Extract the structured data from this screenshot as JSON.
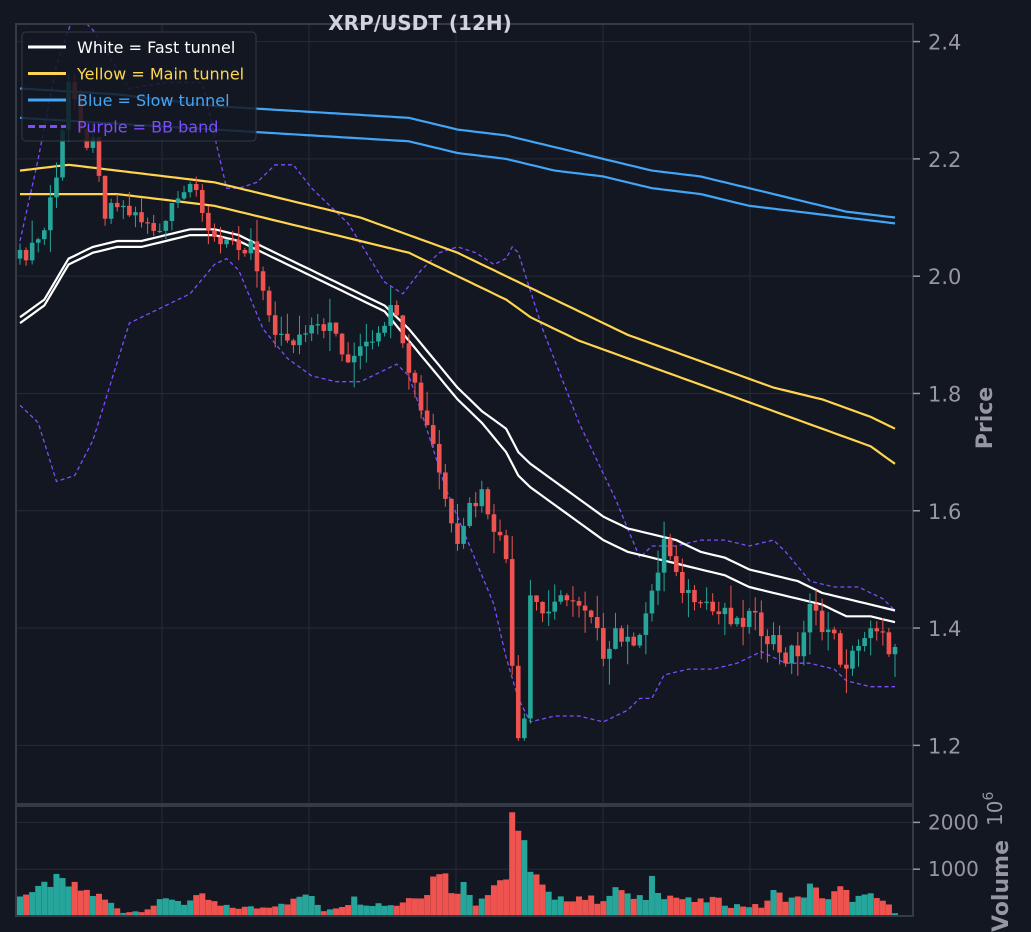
{
  "chart_data": {
    "type": "candlestick",
    "title": "XRP/USDT (12H)",
    "colors": {
      "background": "#131722",
      "grid": "#252b37",
      "frame": "#363a45",
      "up": "#26a69a",
      "down": "#ef5350",
      "fast": "#ffffff",
      "main": "#ffd54f",
      "slow": "#42a5f5",
      "bb": "#7c4dff",
      "tick": "#9598a1",
      "title": "#d1d4dc"
    },
    "price_axis": {
      "label": "Price",
      "ylim": [
        1.1,
        2.43
      ],
      "ticks": [
        1.2,
        1.4,
        1.6,
        1.8,
        2.0,
        2.2,
        2.4
      ],
      "tick_labels": [
        "1.2",
        "1.4",
        "1.6",
        "1.8",
        "2.0",
        "2.2",
        "2.4"
      ]
    },
    "volume_axis": {
      "label": "Volume",
      "multiplier": "10",
      "exponent": "6",
      "ylim": [
        0,
        2350
      ],
      "ticks": [
        1000,
        2000
      ],
      "tick_labels": [
        "1000",
        "2000"
      ]
    },
    "legend": {
      "placement": "top-left",
      "entries": [
        {
          "label": "White = Fast tunnel",
          "color": "#ffffff",
          "style": "solid"
        },
        {
          "label": "Yellow = Main tunnel",
          "color": "#ffd54f",
          "style": "solid"
        },
        {
          "label": "Blue = Slow tunnel",
          "color": "#42a5f5",
          "style": "solid"
        },
        {
          "label": "Purple = BB band",
          "color": "#7c4dff",
          "style": "dashed"
        }
      ]
    },
    "grid": true,
    "bar_count": 145,
    "anchors_close": [
      [
        0,
        2.03
      ],
      [
        4,
        2.08
      ],
      [
        6,
        2.18
      ],
      [
        8,
        2.33
      ],
      [
        10,
        2.24
      ],
      [
        12,
        2.22
      ],
      [
        14,
        2.1
      ],
      [
        16,
        2.12
      ],
      [
        18,
        2.11
      ],
      [
        20,
        2.09
      ],
      [
        22,
        2.08
      ],
      [
        24,
        2.1
      ],
      [
        26,
        2.15
      ],
      [
        28,
        2.16
      ],
      [
        30,
        2.1
      ],
      [
        32,
        2.07
      ],
      [
        34,
        2.06
      ],
      [
        36,
        2.03
      ],
      [
        38,
        2.05
      ],
      [
        40,
        1.96
      ],
      [
        42,
        1.91
      ],
      [
        44,
        1.88
      ],
      [
        46,
        1.9
      ],
      [
        48,
        1.93
      ],
      [
        50,
        1.92
      ],
      [
        52,
        1.9
      ],
      [
        54,
        1.84
      ],
      [
        56,
        1.89
      ],
      [
        58,
        1.9
      ],
      [
        60,
        1.93
      ],
      [
        62,
        1.95
      ],
      [
        64,
        1.85
      ],
      [
        66,
        1.78
      ],
      [
        68,
        1.72
      ],
      [
        70,
        1.62
      ],
      [
        72,
        1.56
      ],
      [
        74,
        1.61
      ],
      [
        76,
        1.63
      ],
      [
        78,
        1.58
      ],
      [
        80,
        1.52
      ],
      [
        81,
        1.35
      ],
      [
        82,
        1.22
      ],
      [
        83,
        1.26
      ],
      [
        84,
        1.46
      ],
      [
        86,
        1.43
      ],
      [
        88,
        1.43
      ],
      [
        90,
        1.46
      ],
      [
        92,
        1.43
      ],
      [
        94,
        1.41
      ],
      [
        96,
        1.36
      ],
      [
        98,
        1.4
      ],
      [
        100,
        1.37
      ],
      [
        102,
        1.4
      ],
      [
        104,
        1.45
      ],
      [
        106,
        1.55
      ],
      [
        108,
        1.48
      ],
      [
        110,
        1.46
      ],
      [
        112,
        1.46
      ],
      [
        114,
        1.43
      ],
      [
        116,
        1.42
      ],
      [
        118,
        1.4
      ],
      [
        120,
        1.42
      ],
      [
        122,
        1.4
      ],
      [
        124,
        1.38
      ],
      [
        126,
        1.35
      ],
      [
        128,
        1.36
      ],
      [
        130,
        1.43
      ],
      [
        132,
        1.41
      ],
      [
        134,
        1.38
      ],
      [
        136,
        1.32
      ],
      [
        138,
        1.38
      ],
      [
        140,
        1.39
      ],
      [
        142,
        1.38
      ],
      [
        144,
        1.36
      ]
    ],
    "fast_tunnel": {
      "upper": [
        [
          0,
          1.93
        ],
        [
          4,
          1.96
        ],
        [
          8,
          2.03
        ],
        [
          12,
          2.05
        ],
        [
          16,
          2.06
        ],
        [
          20,
          2.06
        ],
        [
          24,
          2.07
        ],
        [
          28,
          2.08
        ],
        [
          32,
          2.08
        ],
        [
          36,
          2.07
        ],
        [
          40,
          2.05
        ],
        [
          44,
          2.03
        ],
        [
          48,
          2.01
        ],
        [
          52,
          1.99
        ],
        [
          56,
          1.97
        ],
        [
          60,
          1.95
        ],
        [
          64,
          1.91
        ],
        [
          68,
          1.86
        ],
        [
          72,
          1.81
        ],
        [
          76,
          1.77
        ],
        [
          80,
          1.74
        ],
        [
          82,
          1.7
        ],
        [
          84,
          1.68
        ],
        [
          88,
          1.65
        ],
        [
          92,
          1.62
        ],
        [
          96,
          1.59
        ],
        [
          100,
          1.57
        ],
        [
          104,
          1.56
        ],
        [
          108,
          1.55
        ],
        [
          112,
          1.53
        ],
        [
          116,
          1.52
        ],
        [
          120,
          1.5
        ],
        [
          124,
          1.49
        ],
        [
          128,
          1.48
        ],
        [
          132,
          1.46
        ],
        [
          136,
          1.45
        ],
        [
          140,
          1.44
        ],
        [
          144,
          1.43
        ]
      ],
      "lower": [
        [
          0,
          1.92
        ],
        [
          4,
          1.95
        ],
        [
          8,
          2.02
        ],
        [
          12,
          2.04
        ],
        [
          16,
          2.05
        ],
        [
          20,
          2.05
        ],
        [
          24,
          2.06
        ],
        [
          28,
          2.07
        ],
        [
          32,
          2.07
        ],
        [
          36,
          2.06
        ],
        [
          40,
          2.04
        ],
        [
          44,
          2.02
        ],
        [
          48,
          2.0
        ],
        [
          52,
          1.98
        ],
        [
          56,
          1.96
        ],
        [
          60,
          1.94
        ],
        [
          64,
          1.89
        ],
        [
          68,
          1.84
        ],
        [
          72,
          1.79
        ],
        [
          76,
          1.75
        ],
        [
          80,
          1.7
        ],
        [
          82,
          1.66
        ],
        [
          84,
          1.64
        ],
        [
          88,
          1.61
        ],
        [
          92,
          1.58
        ],
        [
          96,
          1.55
        ],
        [
          100,
          1.53
        ],
        [
          104,
          1.52
        ],
        [
          108,
          1.51
        ],
        [
          112,
          1.5
        ],
        [
          116,
          1.49
        ],
        [
          120,
          1.47
        ],
        [
          124,
          1.46
        ],
        [
          128,
          1.45
        ],
        [
          132,
          1.44
        ],
        [
          136,
          1.42
        ],
        [
          140,
          1.42
        ],
        [
          144,
          1.41
        ]
      ]
    },
    "main_tunnel": {
      "upper": [
        [
          0,
          2.18
        ],
        [
          8,
          2.19
        ],
        [
          16,
          2.18
        ],
        [
          24,
          2.17
        ],
        [
          32,
          2.16
        ],
        [
          40,
          2.14
        ],
        [
          48,
          2.12
        ],
        [
          56,
          2.1
        ],
        [
          64,
          2.07
        ],
        [
          72,
          2.04
        ],
        [
          80,
          2.0
        ],
        [
          84,
          1.98
        ],
        [
          92,
          1.94
        ],
        [
          100,
          1.9
        ],
        [
          108,
          1.87
        ],
        [
          116,
          1.84
        ],
        [
          124,
          1.81
        ],
        [
          132,
          1.79
        ],
        [
          140,
          1.76
        ],
        [
          144,
          1.74
        ]
      ],
      "lower": [
        [
          0,
          2.14
        ],
        [
          8,
          2.14
        ],
        [
          16,
          2.14
        ],
        [
          24,
          2.13
        ],
        [
          32,
          2.12
        ],
        [
          40,
          2.1
        ],
        [
          48,
          2.08
        ],
        [
          56,
          2.06
        ],
        [
          64,
          2.04
        ],
        [
          72,
          2.0
        ],
        [
          80,
          1.96
        ],
        [
          84,
          1.93
        ],
        [
          92,
          1.89
        ],
        [
          100,
          1.86
        ],
        [
          108,
          1.83
        ],
        [
          116,
          1.8
        ],
        [
          124,
          1.77
        ],
        [
          132,
          1.74
        ],
        [
          140,
          1.71
        ],
        [
          144,
          1.68
        ]
      ]
    },
    "slow_tunnel": {
      "upper": [
        [
          0,
          2.32
        ],
        [
          16,
          2.31
        ],
        [
          32,
          2.29
        ],
        [
          48,
          2.28
        ],
        [
          64,
          2.27
        ],
        [
          72,
          2.25
        ],
        [
          80,
          2.24
        ],
        [
          88,
          2.22
        ],
        [
          96,
          2.2
        ],
        [
          104,
          2.18
        ],
        [
          112,
          2.17
        ],
        [
          120,
          2.15
        ],
        [
          128,
          2.13
        ],
        [
          136,
          2.11
        ],
        [
          144,
          2.1
        ]
      ],
      "lower": [
        [
          0,
          2.27
        ],
        [
          16,
          2.26
        ],
        [
          32,
          2.25
        ],
        [
          48,
          2.24
        ],
        [
          64,
          2.23
        ],
        [
          72,
          2.21
        ],
        [
          80,
          2.2
        ],
        [
          88,
          2.18
        ],
        [
          96,
          2.17
        ],
        [
          104,
          2.15
        ],
        [
          112,
          2.14
        ],
        [
          120,
          2.12
        ],
        [
          128,
          2.11
        ],
        [
          136,
          2.1
        ],
        [
          144,
          2.09
        ]
      ]
    },
    "bb_band": {
      "upper": [
        [
          0,
          2.06
        ],
        [
          3,
          2.2
        ],
        [
          6,
          2.36
        ],
        [
          9,
          2.45
        ],
        [
          12,
          2.42
        ],
        [
          18,
          2.32
        ],
        [
          24,
          2.33
        ],
        [
          30,
          2.33
        ],
        [
          34,
          2.15
        ],
        [
          36,
          2.15
        ],
        [
          39,
          2.16
        ],
        [
          42,
          2.19
        ],
        [
          45,
          2.19
        ],
        [
          48,
          2.15
        ],
        [
          54,
          2.09
        ],
        [
          57,
          2.04
        ],
        [
          60,
          1.99
        ],
        [
          63,
          1.97
        ],
        [
          66,
          2.01
        ],
        [
          69,
          2.04
        ],
        [
          72,
          2.05
        ],
        [
          75,
          2.04
        ],
        [
          78,
          2.02
        ],
        [
          80,
          2.03
        ],
        [
          81,
          2.05
        ],
        [
          82,
          2.04
        ],
        [
          86,
          1.91
        ],
        [
          92,
          1.75
        ],
        [
          98,
          1.62
        ],
        [
          102,
          1.52
        ],
        [
          104,
          1.54
        ],
        [
          108,
          1.54
        ],
        [
          112,
          1.55
        ],
        [
          116,
          1.55
        ],
        [
          120,
          1.54
        ],
        [
          124,
          1.55
        ],
        [
          126,
          1.53
        ],
        [
          130,
          1.48
        ],
        [
          134,
          1.47
        ],
        [
          138,
          1.47
        ],
        [
          142,
          1.45
        ],
        [
          144,
          1.43
        ]
      ],
      "lower": [
        [
          0,
          1.78
        ],
        [
          3,
          1.75
        ],
        [
          6,
          1.65
        ],
        [
          9,
          1.66
        ],
        [
          12,
          1.72
        ],
        [
          18,
          1.92
        ],
        [
          24,
          1.95
        ],
        [
          28,
          1.97
        ],
        [
          32,
          2.02
        ],
        [
          34,
          2.03
        ],
        [
          36,
          2.01
        ],
        [
          40,
          1.91
        ],
        [
          44,
          1.86
        ],
        [
          48,
          1.83
        ],
        [
          52,
          1.82
        ],
        [
          56,
          1.82
        ],
        [
          60,
          1.84
        ],
        [
          62,
          1.85
        ],
        [
          64,
          1.83
        ],
        [
          66,
          1.77
        ],
        [
          70,
          1.64
        ],
        [
          74,
          1.54
        ],
        [
          78,
          1.44
        ],
        [
          80,
          1.35
        ],
        [
          82,
          1.28
        ],
        [
          84,
          1.24
        ],
        [
          88,
          1.25
        ],
        [
          92,
          1.25
        ],
        [
          96,
          1.24
        ],
        [
          100,
          1.26
        ],
        [
          102,
          1.28
        ],
        [
          104,
          1.28
        ],
        [
          106,
          1.32
        ],
        [
          110,
          1.33
        ],
        [
          114,
          1.33
        ],
        [
          118,
          1.34
        ],
        [
          122,
          1.36
        ],
        [
          124,
          1.35
        ],
        [
          126,
          1.34
        ],
        [
          130,
          1.34
        ],
        [
          134,
          1.33
        ],
        [
          136,
          1.31
        ],
        [
          140,
          1.3
        ],
        [
          144,
          1.3
        ]
      ]
    },
    "volume_peaks": [
      [
        2,
        500
      ],
      [
        3,
        520
      ],
      [
        5,
        740
      ],
      [
        7,
        700
      ],
      [
        9,
        600
      ],
      [
        11,
        520
      ],
      [
        13,
        420
      ],
      [
        15,
        260
      ],
      [
        17,
        80
      ],
      [
        20,
        110
      ],
      [
        23,
        290
      ],
      [
        25,
        390
      ],
      [
        27,
        280
      ],
      [
        30,
        400
      ],
      [
        31,
        350
      ],
      [
        33,
        210
      ],
      [
        35,
        180
      ],
      [
        40,
        180
      ],
      [
        43,
        290
      ],
      [
        45,
        320
      ],
      [
        47,
        480
      ],
      [
        50,
        120
      ],
      [
        53,
        230
      ],
      [
        55,
        360
      ],
      [
        57,
        280
      ],
      [
        60,
        250
      ],
      [
        62,
        240
      ],
      [
        65,
        450
      ],
      [
        67,
        530
      ],
      [
        69,
        1080
      ],
      [
        71,
        580
      ],
      [
        73,
        650
      ],
      [
        75,
        280
      ],
      [
        78,
        700
      ],
      [
        80,
        840
      ],
      [
        81,
        2280
      ],
      [
        82,
        1500
      ],
      [
        83,
        1400
      ],
      [
        84,
        1150
      ],
      [
        86,
        600
      ],
      [
        88,
        310
      ],
      [
        90,
        380
      ],
      [
        92,
        420
      ],
      [
        95,
        330
      ],
      [
        97,
        430
      ],
      [
        99,
        600
      ],
      [
        101,
        330
      ],
      [
        103,
        400
      ],
      [
        104,
        800
      ],
      [
        106,
        470
      ],
      [
        108,
        400
      ],
      [
        110,
        330
      ],
      [
        112,
        300
      ],
      [
        114,
        360
      ],
      [
        117,
        230
      ],
      [
        120,
        220
      ],
      [
        122,
        200
      ],
      [
        124,
        480
      ],
      [
        126,
        400
      ],
      [
        128,
        360
      ],
      [
        130,
        600
      ],
      [
        133,
        370
      ],
      [
        135,
        560
      ],
      [
        137,
        380
      ],
      [
        140,
        400
      ],
      [
        142,
        330
      ],
      [
        144,
        80
      ]
    ]
  }
}
